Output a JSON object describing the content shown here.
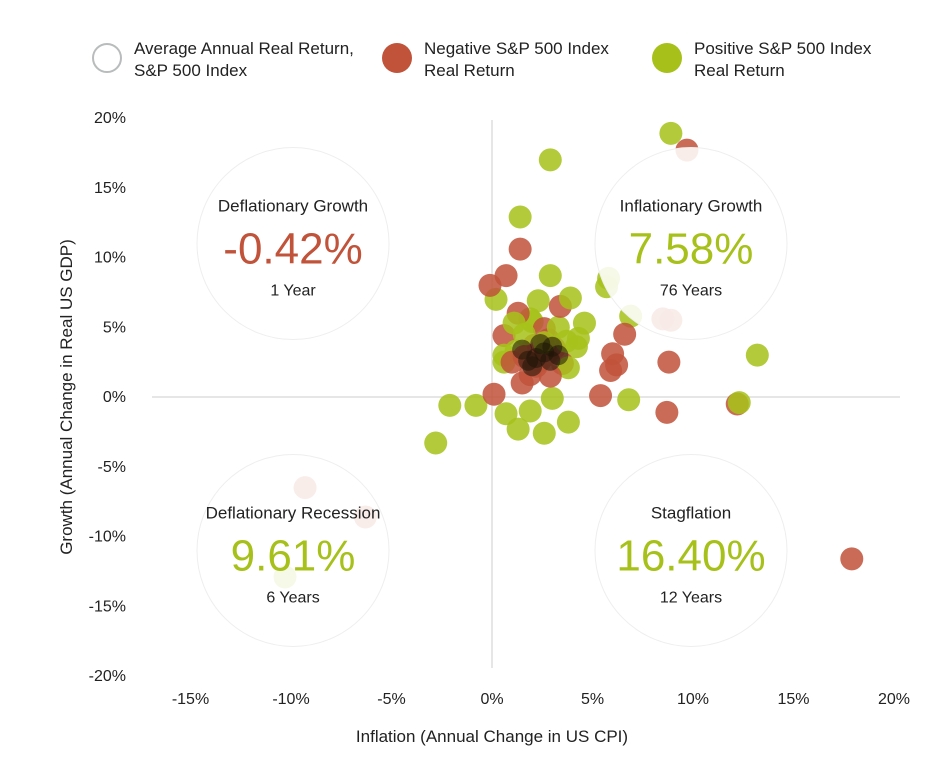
{
  "legend": {
    "avg_label": "Average Annual Real Return,\nS&P 500 Index",
    "negative_label": "Negative S&P 500 Index\nReal Return",
    "positive_label": "Positive S&P 500 Index\nReal Return"
  },
  "colors": {
    "negative": "#c0533a",
    "positive": "#a7c11a",
    "axis": "#cccccc",
    "avg_circle_stroke": "#b8bcbc"
  },
  "chart_data": {
    "type": "scatter",
    "title": "",
    "xlabel": "Inflation (Annual Change in US CPI)",
    "ylabel": "Growth (Annual Change in Real US GDP)",
    "xlim": [
      -17,
      20
    ],
    "ylim": [
      -20,
      20
    ],
    "x_ticks": [
      "-15%",
      "-10%",
      "-5%",
      "0%",
      "5%",
      "10%",
      "15%",
      "20%"
    ],
    "x_tick_values": [
      -15,
      -10,
      -5,
      0,
      5,
      10,
      15,
      20
    ],
    "y_ticks": [
      "20%",
      "15%",
      "10%",
      "5%",
      "0%",
      "-5%",
      "-10%",
      "-15%",
      "-20%"
    ],
    "y_tick_values": [
      20,
      15,
      10,
      5,
      0,
      -5,
      -10,
      -15,
      -20
    ],
    "quadrants": [
      {
        "name": "Deflationary Growth",
        "value": "-0.42%",
        "years": "1 Year",
        "sign": "negative",
        "cx": -9.9,
        "cy": 11
      },
      {
        "name": "Inflationary Growth",
        "value": "7.58%",
        "years": "76 Years",
        "sign": "positive",
        "cx": 9.9,
        "cy": 11
      },
      {
        "name": "Deflationary Recession",
        "value": "9.61%",
        "years": "6 Years",
        "sign": "positive",
        "cx": -9.9,
        "cy": -11
      },
      {
        "name": "Stagflation",
        "value": "16.40%",
        "years": "12 Years",
        "sign": "positive",
        "cx": 9.9,
        "cy": -11
      }
    ],
    "series": [
      {
        "name": "Negative S&P 500 Index Real Return",
        "points": [
          [
            9.7,
            17.7
          ],
          [
            1.4,
            10.6
          ],
          [
            0.7,
            8.7
          ],
          [
            -0.1,
            8.0
          ],
          [
            1.3,
            6.0
          ],
          [
            3.4,
            6.5
          ],
          [
            2.6,
            4.9
          ],
          [
            6.6,
            4.5
          ],
          [
            0.6,
            4.4
          ],
          [
            2.1,
            3.7
          ],
          [
            1.8,
            3.0
          ],
          [
            6.0,
            3.1
          ],
          [
            6.2,
            2.3
          ],
          [
            5.9,
            1.9
          ],
          [
            8.8,
            2.5
          ],
          [
            2.9,
            1.5
          ],
          [
            1.9,
            1.6
          ],
          [
            1.5,
            1.0
          ],
          [
            0.1,
            0.2
          ],
          [
            5.4,
            0.1
          ],
          [
            8.7,
            -1.1
          ],
          [
            12.2,
            -0.5
          ],
          [
            17.9,
            -11.6
          ],
          [
            -9.3,
            -6.5
          ],
          [
            -6.3,
            -8.6
          ],
          [
            8.5,
            5.6
          ],
          [
            8.9,
            5.5
          ],
          [
            2.4,
            2.6
          ],
          [
            2.7,
            3.0
          ],
          [
            3.1,
            3.5
          ],
          [
            1.6,
            2.9
          ],
          [
            3.5,
            2.4
          ],
          [
            2.2,
            2.2
          ],
          [
            1.0,
            2.5
          ],
          [
            2.8,
            4.1
          ]
        ]
      },
      {
        "name": "Positive S&P 500 Index Real Return",
        "points": [
          [
            8.9,
            18.9
          ],
          [
            2.9,
            17.0
          ],
          [
            1.4,
            12.9
          ],
          [
            2.9,
            8.7
          ],
          [
            5.8,
            8.5
          ],
          [
            5.7,
            7.9
          ],
          [
            3.9,
            7.1
          ],
          [
            0.2,
            7.0
          ],
          [
            2.3,
            6.9
          ],
          [
            6.9,
            5.8
          ],
          [
            4.6,
            5.3
          ],
          [
            13.2,
            3.0
          ],
          [
            12.3,
            -0.4
          ],
          [
            6.8,
            -0.2
          ],
          [
            3.8,
            -1.8
          ],
          [
            2.6,
            -2.6
          ],
          [
            1.3,
            -2.3
          ],
          [
            -0.8,
            -0.6
          ],
          [
            -2.1,
            -0.6
          ],
          [
            -2.8,
            -3.3
          ],
          [
            0.7,
            -1.2
          ],
          [
            1.9,
            -1.0
          ],
          [
            3.0,
            -0.1
          ],
          [
            3.8,
            2.1
          ],
          [
            4.2,
            3.6
          ],
          [
            4.3,
            4.2
          ],
          [
            3.7,
            4.0
          ],
          [
            1.6,
            4.5
          ],
          [
            2.0,
            5.4
          ],
          [
            0.6,
            3.0
          ],
          [
            0.6,
            2.5
          ],
          [
            1.2,
            3.3
          ],
          [
            2.6,
            3.9
          ],
          [
            3.3,
            5.0
          ],
          [
            1.9,
            5.6
          ],
          [
            1.1,
            5.3
          ],
          [
            -10.3,
            -12.9
          ]
        ]
      }
    ]
  }
}
